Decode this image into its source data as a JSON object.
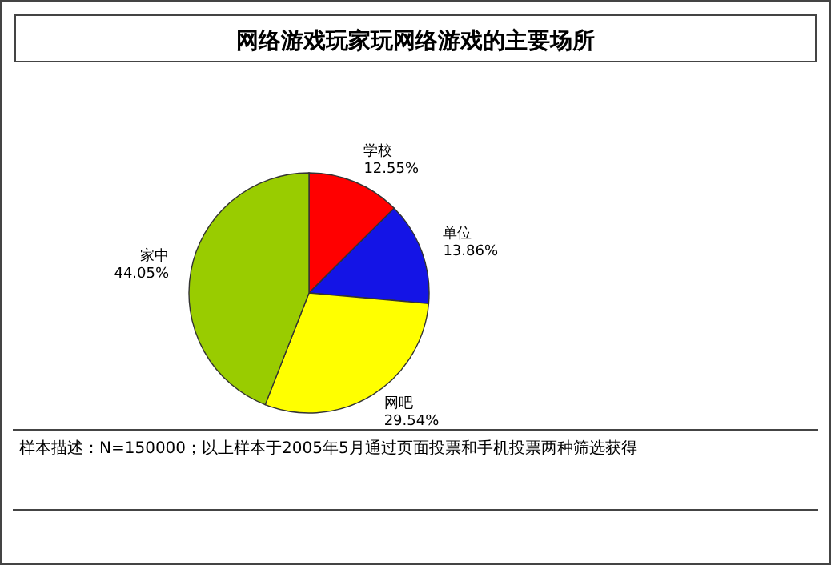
{
  "chart_data": {
    "type": "pie",
    "title": "网络游戏玩家玩网络游戏的主要场所",
    "categories": [
      "学校",
      "单位",
      "网吧",
      "家中"
    ],
    "values": [
      12.55,
      13.86,
      29.54,
      44.05
    ],
    "colors": [
      "#ff0000",
      "#1414e6",
      "#ffff00",
      "#99cc00"
    ],
    "value_labels": [
      "12.55%",
      "13.86%",
      "29.54%",
      "44.05%"
    ],
    "annotations": [
      "样本描述：N=150000；以上样本于2005年5月通过页面投票和手机投票两种筛选获得"
    ]
  }
}
